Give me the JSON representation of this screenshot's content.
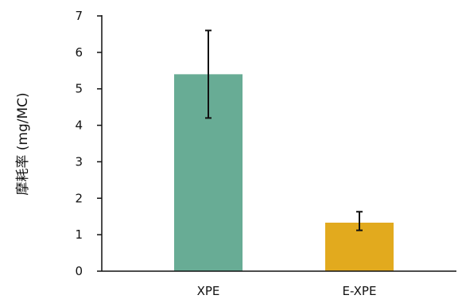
{
  "chart_data": {
    "type": "bar",
    "title": "",
    "xlabel": "",
    "ylabel": "摩耗率 (mg/MC)",
    "categories": [
      "XPE",
      "E-XPE"
    ],
    "values": [
      5.4,
      1.33
    ],
    "error_bars": [
      {
        "low": 4.2,
        "high": 6.6
      },
      {
        "low": 1.12,
        "high": 1.63
      }
    ],
    "colors": [
      "#68AC95",
      "#E2AA1E"
    ],
    "ylim": [
      0,
      7
    ],
    "yticks": [
      "0",
      "1",
      "2",
      "3",
      "4",
      "5",
      "6",
      "7"
    ],
    "grid": false,
    "legend": "none"
  }
}
